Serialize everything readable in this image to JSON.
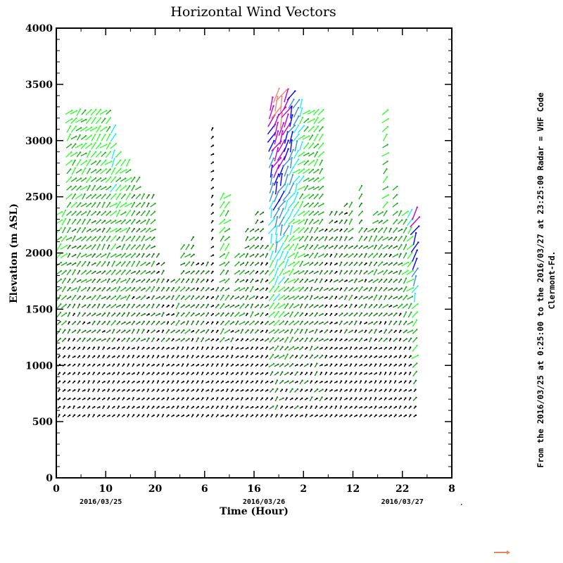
{
  "chart_data": {
    "type": "vector",
    "title": "Horizontal Wind Vectors",
    "xlabel": "Time (Hour)",
    "ylabel": "Elevation (m ASL)",
    "xlim": [
      0,
      80
    ],
    "ylim": [
      0,
      4000
    ],
    "x_tick_values": [
      0,
      10,
      20,
      30,
      40,
      50,
      60,
      70,
      80
    ],
    "x_tick_labels": [
      "0",
      "10",
      "20",
      "6",
      "16",
      "2",
      "12",
      "22",
      "8"
    ],
    "y_tick_labels": [
      "0",
      "500",
      "1000",
      "1500",
      "2000",
      "2500",
      "3000",
      "3500",
      "4000"
    ],
    "y_tick_values": [
      0,
      500,
      1000,
      1500,
      2000,
      2500,
      3000,
      3500,
      4000
    ],
    "dates": [
      {
        "label": "2016/03/25",
        "x": 7
      },
      {
        "label": "2016/03/26",
        "x": 40
      },
      {
        "label": "2016/03/27",
        "x": 68
      }
    ],
    "altitude_step_m": 75,
    "speed_colors": [
      "#000000",
      "#1a7a1a",
      "#22b022",
      "#33ff33",
      "#22eeff",
      "#3a8fd0",
      "#0000ff",
      "#c000d0",
      "#f08878"
    ],
    "columns_hour_top_bottom_maxlevel": [
      [
        0,
        2350,
        550,
        3
      ],
      [
        1,
        2350,
        550,
        3
      ],
      [
        2,
        3300,
        550,
        3
      ],
      [
        3,
        3300,
        550,
        3
      ],
      [
        4,
        3300,
        550,
        3
      ],
      [
        5,
        3300,
        550,
        3
      ],
      [
        6,
        3300,
        550,
        3
      ],
      [
        7,
        3300,
        550,
        3
      ],
      [
        8,
        3300,
        550,
        3
      ],
      [
        9,
        3300,
        550,
        3
      ],
      [
        10,
        3300,
        550,
        3
      ],
      [
        11,
        3150,
        550,
        4
      ],
      [
        12,
        2900,
        550,
        3
      ],
      [
        13,
        2800,
        550,
        3
      ],
      [
        14,
        2800,
        550,
        3
      ],
      [
        15,
        2700,
        550,
        2
      ],
      [
        16,
        2700,
        550,
        2
      ],
      [
        17,
        2550,
        550,
        2
      ],
      [
        18,
        2550,
        550,
        2
      ],
      [
        19,
        2550,
        550,
        2
      ],
      [
        20,
        2000,
        550,
        1
      ],
      [
        21,
        1900,
        550,
        1
      ],
      [
        22,
        1800,
        550,
        1
      ],
      [
        23,
        1800,
        550,
        1
      ],
      [
        24,
        1800,
        550,
        2
      ],
      [
        25,
        2100,
        550,
        2
      ],
      [
        26,
        2100,
        550,
        2
      ],
      [
        27,
        2150,
        550,
        1
      ],
      [
        28,
        1900,
        550,
        1
      ],
      [
        29,
        1900,
        550,
        1
      ],
      [
        30,
        1900,
        550,
        1
      ],
      [
        31,
        3150,
        550,
        0
      ],
      [
        32,
        1700,
        550,
        1
      ],
      [
        33,
        2550,
        550,
        3
      ],
      [
        34,
        2550,
        550,
        3
      ],
      [
        35,
        1650,
        550,
        1
      ],
      [
        36,
        2000,
        550,
        2
      ],
      [
        37,
        2000,
        550,
        2
      ],
      [
        38,
        2200,
        550,
        1
      ],
      [
        39,
        2200,
        550,
        2
      ],
      [
        40,
        2400,
        550,
        1
      ],
      [
        41,
        2400,
        550,
        1
      ],
      [
        42,
        2100,
        550,
        1
      ],
      [
        43,
        3350,
        550,
        7
      ],
      [
        44,
        3400,
        550,
        8
      ],
      [
        45,
        3400,
        550,
        8
      ],
      [
        46,
        3400,
        550,
        7
      ],
      [
        47,
        3400,
        550,
        6
      ],
      [
        48,
        3350,
        550,
        5
      ],
      [
        49,
        3350,
        550,
        4
      ],
      [
        50,
        3300,
        550,
        3
      ],
      [
        51,
        3300,
        550,
        3
      ],
      [
        52,
        3300,
        550,
        3
      ],
      [
        53,
        3300,
        550,
        3
      ],
      [
        54,
        2200,
        550,
        1
      ],
      [
        55,
        2400,
        550,
        1
      ],
      [
        56,
        2400,
        550,
        1
      ],
      [
        57,
        2400,
        550,
        1
      ],
      [
        58,
        2450,
        550,
        1
      ],
      [
        59,
        2450,
        550,
        2
      ],
      [
        60,
        2050,
        550,
        1
      ],
      [
        61,
        2600,
        550,
        2
      ],
      [
        62,
        2200,
        550,
        1
      ],
      [
        63,
        2200,
        550,
        2
      ],
      [
        64,
        2400,
        550,
        2
      ],
      [
        65,
        2400,
        550,
        2
      ],
      [
        66,
        3300,
        550,
        3
      ],
      [
        67,
        2250,
        550,
        1
      ],
      [
        68,
        2600,
        550,
        2
      ],
      [
        69,
        2400,
        550,
        2
      ],
      [
        70,
        2400,
        550,
        3
      ],
      [
        71,
        2350,
        550,
        4
      ],
      [
        72,
        2350,
        550,
        7
      ]
    ]
  },
  "side_text_line1": "From the 2016/03/25 at  0:25:00 to the 2016/03/27 at 23:25:00 Radar = VHF Code",
  "side_text_line2": "Clermont-Fd.",
  "legend_arrow_color": "#e08860"
}
